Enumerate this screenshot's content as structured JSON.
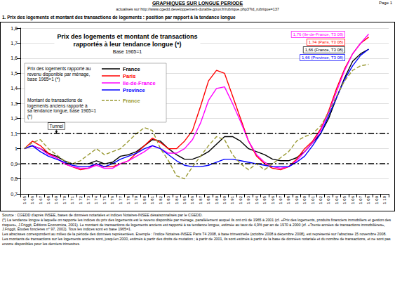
{
  "header": {
    "title": "GRAPHIQUES SUR LONGUE PERIODE",
    "updated": "actualisés sur http://www.cgedd.developpement-durable.gouv.fr/rubrique.php3?id_rubrique=137",
    "page": "Page 1"
  },
  "section_title": "1. Prix des logements et montant des transactions de logements : position par rapport à la tendance longue",
  "chart_data": {
    "type": "line",
    "title": "Prix des logements et montant de transactions\nrapportés à leur tendance longue (*)",
    "subtitle": "Base 1965=1",
    "categories": [
      "1 65",
      "1 66",
      "1 67",
      "1 68",
      "1 69",
      "1 70",
      "1 71",
      "1 72",
      "1 73",
      "1 74",
      "1 75",
      "1 76",
      "1 77",
      "1 78",
      "1 79",
      "1 80",
      "1 81",
      "1 82",
      "1 83",
      "1 84",
      "1 85",
      "1 86",
      "1 87",
      "1 88",
      "1 89",
      "1 90",
      "1 91",
      "1 92",
      "1 93",
      "1 94",
      "1 95",
      "1 96",
      "1 97",
      "1 98",
      "1 99",
      "1 00",
      "1 01",
      "1 02",
      "1 03",
      "1 04",
      "1 05",
      "1 06",
      "1 07",
      "1 08",
      "1 09",
      "1 10"
    ],
    "series": [
      {
        "name": "France",
        "color": "#000000",
        "line_style": "solid",
        "legend_title": "Prix des logements rapporté au revenu disponible par ménage, base 1965=1 (*)",
        "values": [
          1.0,
          1.02,
          1.0,
          0.97,
          0.95,
          0.92,
          0.9,
          0.9,
          0.9,
          0.92,
          0.9,
          0.91,
          0.95,
          0.96,
          0.98,
          1.02,
          1.06,
          1.05,
          1.0,
          0.96,
          0.93,
          0.93,
          0.95,
          0.98,
          1.03,
          1.08,
          1.08,
          1.05,
          1.0,
          0.98,
          0.96,
          0.93,
          0.92,
          0.92,
          0.94,
          0.98,
          1.04,
          1.1,
          1.2,
          1.34,
          1.47,
          1.58,
          1.63,
          1.66,
          null,
          null
        ]
      },
      {
        "name": "Paris",
        "color": "#ff0000",
        "line_style": "solid",
        "values": [
          1.0,
          1.05,
          1.02,
          0.97,
          0.94,
          0.9,
          0.88,
          0.86,
          0.87,
          0.9,
          0.88,
          0.88,
          0.9,
          0.92,
          0.97,
          1.02,
          1.07,
          1.04,
          1.0,
          1.0,
          1.05,
          1.12,
          1.28,
          1.45,
          1.52,
          1.5,
          1.35,
          1.2,
          1.05,
          0.95,
          0.9,
          0.87,
          0.86,
          0.88,
          0.93,
          1.0,
          1.05,
          1.13,
          1.25,
          1.4,
          1.53,
          1.63,
          1.7,
          1.74,
          null,
          null
        ]
      },
      {
        "name": "Ile-de-France",
        "color": "#ff00ff",
        "line_style": "solid",
        "values": [
          1.0,
          1.02,
          1.0,
          0.96,
          0.94,
          0.9,
          0.88,
          0.87,
          0.87,
          0.89,
          0.87,
          0.87,
          0.9,
          0.92,
          0.95,
          0.98,
          1.02,
          1.0,
          0.97,
          0.97,
          1.0,
          1.06,
          1.17,
          1.32,
          1.4,
          1.41,
          1.3,
          1.18,
          1.05,
          0.96,
          0.91,
          0.88,
          0.87,
          0.88,
          0.92,
          0.98,
          1.04,
          1.12,
          1.24,
          1.38,
          1.52,
          1.63,
          1.7,
          1.76,
          null,
          null
        ]
      },
      {
        "name": "Province",
        "color": "#0000ff",
        "line_style": "solid",
        "values": [
          1.0,
          1.02,
          0.98,
          0.95,
          0.93,
          0.91,
          0.89,
          0.88,
          0.88,
          0.9,
          0.88,
          0.9,
          0.93,
          0.95,
          0.97,
          1.0,
          1.02,
          1.0,
          0.96,
          0.92,
          0.89,
          0.88,
          0.88,
          0.89,
          0.91,
          0.93,
          0.93,
          0.92,
          0.91,
          0.9,
          0.89,
          0.88,
          0.88,
          0.88,
          0.91,
          0.95,
          1.02,
          1.1,
          1.22,
          1.34,
          1.46,
          1.55,
          1.62,
          1.66,
          null,
          null
        ]
      },
      {
        "name": "France",
        "color": "#999933",
        "line_style": "dashed",
        "legend_title": "Montant de transactions de logements anciens rapporté à sa tendance longue, base 1965=1 (*)",
        "values": [
          1.0,
          1.04,
          1.06,
          1.0,
          0.96,
          0.92,
          0.9,
          0.92,
          0.96,
          1.0,
          0.96,
          0.98,
          1.0,
          1.05,
          1.1,
          1.14,
          1.12,
          1.0,
          0.92,
          0.82,
          0.8,
          0.88,
          0.95,
          1.02,
          1.08,
          1.06,
          0.96,
          0.9,
          0.86,
          0.9,
          0.86,
          0.9,
          0.94,
          0.98,
          1.05,
          1.08,
          1.1,
          1.15,
          1.24,
          1.35,
          1.45,
          1.52,
          1.55,
          1.56,
          null,
          null
        ]
      }
    ],
    "ylim": [
      0.7,
      1.8
    ],
    "yticks": [
      {
        "value": 0.7,
        "label": "0,7"
      },
      {
        "value": 0.8,
        "label": "0,8"
      },
      {
        "value": 0.9,
        "label": "0,9"
      },
      1,
      {
        "value": 1.1,
        "label": "1,1"
      },
      {
        "value": 1.2,
        "label": "1,2"
      },
      {
        "value": 1.3,
        "label": "1,3"
      },
      {
        "value": 1.4,
        "label": "1,4"
      },
      {
        "value": 1.5,
        "label": "1,5"
      },
      {
        "value": 1.6,
        "label": "1,6"
      },
      {
        "value": 1.7,
        "label": "1,7"
      },
      {
        "value": 1.8,
        "label": "1,8"
      }
    ],
    "grid": true,
    "legend": "upper left",
    "tunnel_bounds": [
      0.9,
      1.1
    ],
    "annotations": [
      {
        "text": "Tunnel",
        "x": "1 69",
        "y": 1.15
      }
    ],
    "end_labels": [
      {
        "text": "1,76 (Ile-de-France, T3 08)",
        "color": "#ff00ff"
      },
      {
        "text": "1,74 (Paris, T3 08)",
        "color": "#ff0000"
      },
      {
        "text": "1,66 (France, T3 08)",
        "color": "#000000"
      },
      {
        "text": "1,66 (Province, T3 08)",
        "color": "#0000ff"
      }
    ]
  },
  "notes": [
    "Source : CGEDD d'après INSEE, bases de données notariales et indices Notaires-INSEE désaisonnalisés par le CGEDD.",
    "(*) La tendance longue à laquelle on rapporte les indices du prix des logements est le revenu disponible par ménage, parallèlement auquel ils ont crû de 1965 à 2001 (cf. «Prix des logements, produits financiers immobiliers et gestion des risques», J.Friggit, Éditions Economica, 2001). Le montant de transactions de logements anciens est rapporté à sa tendance longue, estimée au taux de 4,9% par an de 1970 à 2000 (cf. «Trente années de transactions immobilières», J.Friggit, Études foncières n° 97, 2002). Tous les indices sont en base 1965=1.",
    "Les abscisses correspondent au milieu de la période des données représentées. Exemple : l'indice Notaires-INSEE Paris T4 2008, à base trimestrielle (octobre 2008 à décembre 2008), est représenté sur l'abscisse 15 novembre 2008.",
    "Les montants de transactions sur les logements anciens sont, jusqu'en 2000, estimés à partir des droits de mutation ; à partir de 2001, ils sont estimés à partir de la base de données notariale et du nombre de transactions, et ne sont pas encore disponibles pour les derniers trimestres."
  ]
}
